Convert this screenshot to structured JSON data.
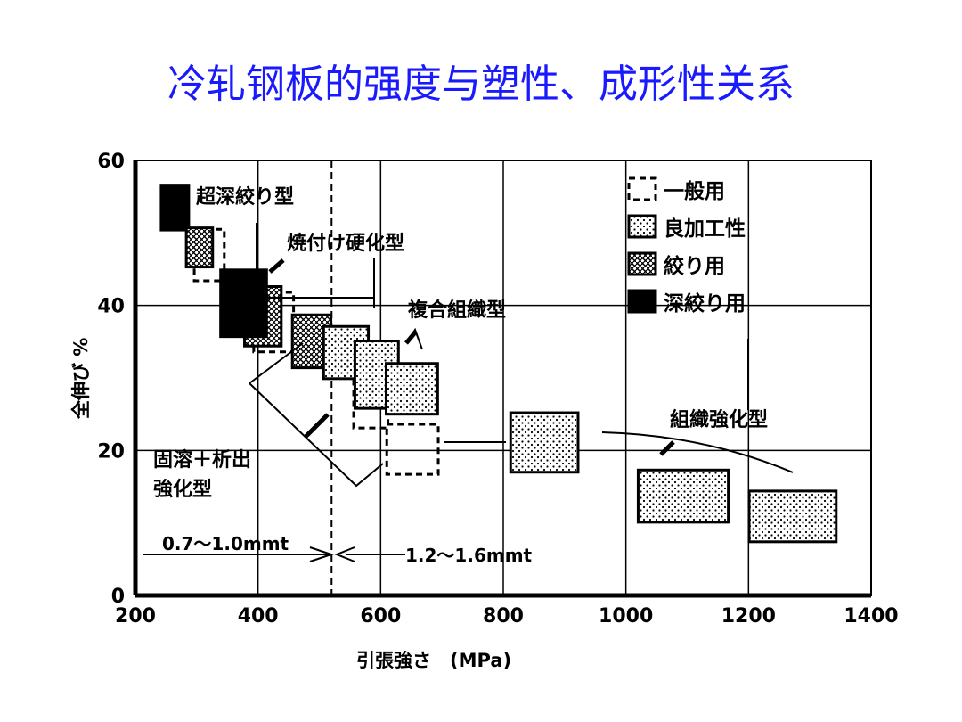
{
  "title": "冷轧钢板的强度与塑性、成形性关系",
  "chart_data": {
    "type": "scatter-regions",
    "xlabel": "引張強さ　(MPa)",
    "ylabel": "全伸び %",
    "xlim": [
      200,
      1400
    ],
    "ylim": [
      0,
      60
    ],
    "xticks": [
      200,
      400,
      600,
      800,
      1000,
      1200,
      1400
    ],
    "yticks": [
      0,
      20,
      40,
      60
    ],
    "grid": true,
    "legend_position": "top-right",
    "legend": [
      {
        "label": "一般用",
        "style": "dashed"
      },
      {
        "label": "良加工性",
        "style": "dotted"
      },
      {
        "label": "絞り用",
        "style": "textured"
      },
      {
        "label": "深絞り用",
        "style": "black"
      }
    ],
    "regions": [
      {
        "style": "dashed",
        "x": [
          296,
          345
        ],
        "y": [
          43.4,
          50.5
        ]
      },
      {
        "style": "black",
        "x": [
          242,
          287
        ],
        "y": [
          50.4,
          56.6
        ]
      },
      {
        "style": "textured",
        "x": [
          283,
          326
        ],
        "y": [
          45.3,
          50.7
        ]
      },
      {
        "style": "dashed",
        "x": [
          393,
          458
        ],
        "y": [
          33.6,
          41.8
        ]
      },
      {
        "style": "textured",
        "x": [
          378,
          438
        ],
        "y": [
          34.4,
          42.6
        ]
      },
      {
        "style": "black",
        "x": [
          339,
          414
        ],
        "y": [
          35.7,
          44.9
        ]
      },
      {
        "style": "dashed",
        "x": [
          556,
          612
        ],
        "y": [
          23.1,
          29.9
        ]
      },
      {
        "style": "dashed",
        "x": [
          610,
          694
        ],
        "y": [
          16.7,
          23.6
        ]
      },
      {
        "style": "textured",
        "x": [
          456,
          519
        ],
        "y": [
          31.4,
          38.7
        ]
      },
      {
        "style": "dotted",
        "x": [
          507,
          580
        ],
        "y": [
          29.9,
          37.1
        ]
      },
      {
        "style": "dotted",
        "x": [
          558,
          629
        ],
        "y": [
          25.8,
          35.1
        ]
      },
      {
        "style": "dotted",
        "x": [
          609,
          693
        ],
        "y": [
          25,
          32
        ]
      },
      {
        "style": "dotted",
        "x": [
          812,
          922
        ],
        "y": [
          17,
          25.2
        ]
      },
      {
        "style": "dotted",
        "x": [
          1020,
          1167
        ],
        "y": [
          10.1,
          17.3
        ]
      },
      {
        "style": "dotted",
        "x": [
          1201,
          1343
        ],
        "y": [
          7.4,
          14.4
        ]
      }
    ],
    "thickness_boundary": 520,
    "annotations": {
      "ultra_deep": "超深絞り型",
      "bake_hardening": "焼付け硬化型",
      "dual_phase": "複合組織型",
      "solution": "固溶＋析出",
      "solution2": "強化型",
      "structure": "組織強化型",
      "thin": "0.7～1.0mmt",
      "thick": "1.2～1.6mmt"
    }
  }
}
